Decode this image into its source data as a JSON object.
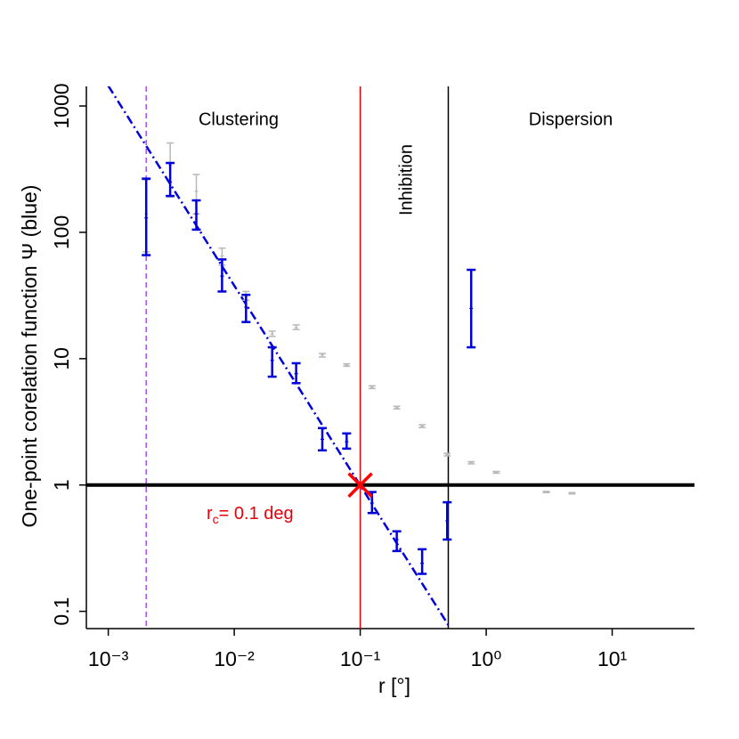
{
  "chart_data": {
    "type": "errorbar",
    "x_label": "r  [°]",
    "y_label": "One-point corelation function  Ψ  (blue)",
    "log_x": true,
    "log_y": true,
    "xlim": [
      0.00067,
      45
    ],
    "ylim": [
      0.073,
      1430
    ],
    "xticks": [
      {
        "value": 0.001,
        "label": "10⁻³"
      },
      {
        "value": 0.01,
        "label": "10⁻²"
      },
      {
        "value": 0.1,
        "label": "10⁻¹"
      },
      {
        "value": 1,
        "label": "10⁰"
      },
      {
        "value": 10,
        "label": "10¹"
      }
    ],
    "yticks": [
      0.1,
      1,
      10,
      100,
      1000
    ],
    "series": [
      {
        "color": "#b8b8b8",
        "x": [
          0.002,
          0.0031,
          0.005,
          0.008,
          0.0124,
          0.02,
          0.031,
          0.05,
          0.078,
          0.124,
          0.195,
          0.31,
          0.49,
          0.76,
          1.2,
          3.0,
          4.8
        ],
        "values": [
          140,
          340,
          211,
          65,
          31.6,
          15.7,
          17.6,
          10.7,
          8.9,
          5.95,
          4.1,
          2.92,
          1.74,
          1.5,
          1.26,
          0.88,
          0.86
        ],
        "lower": [
          70,
          190,
          140,
          55,
          29,
          15,
          17,
          10.3,
          8.7,
          5.8,
          4.0,
          2.85,
          1.7,
          1.47,
          1.24,
          0.87,
          0.85
        ],
        "upper": [
          260,
          510,
          287,
          75,
          34,
          16.5,
          18.5,
          11,
          9.1,
          6.1,
          4.2,
          3.0,
          1.78,
          1.53,
          1.28,
          0.89,
          0.87
        ]
      },
      {
        "color": "#0000dd",
        "x": [
          0.002,
          0.0031,
          0.005,
          0.008,
          0.0124,
          0.02,
          0.031,
          0.05,
          0.078,
          0.124,
          0.195,
          0.31,
          0.49,
          0.76
        ],
        "values": [
          130,
          250,
          140,
          45,
          25.6,
          9.7,
          7.6,
          2.3,
          2.2,
          0.72,
          0.37,
          0.24,
          0.52,
          25
        ],
        "lower": [
          66,
          194,
          105,
          34,
          19.5,
          7.2,
          6.4,
          1.88,
          1.94,
          0.6,
          0.3,
          0.198,
          0.37,
          12.3
        ],
        "upper": [
          266,
          354,
          179,
          61,
          32,
          12.3,
          9.2,
          2.82,
          2.56,
          0.88,
          0.43,
          0.31,
          0.73,
          50.5
        ]
      }
    ],
    "fit": {
      "color": "#0000dd",
      "x": [
        0.001,
        0.5
      ],
      "y": [
        1445,
        0.078
      ]
    },
    "vlines": [
      {
        "x": 0.002,
        "color": "#a64dff",
        "dashed": true
      },
      {
        "x": 0.1,
        "color": "#e8000b",
        "dashed": false
      },
      {
        "x": 0.5,
        "color": "#000000",
        "dashed": false
      }
    ],
    "hline": 1,
    "marker": {
      "x": 0.1,
      "y": 1,
      "color": "#ff0000"
    },
    "annotations": {
      "clustering": "Clustering",
      "inhibition": "Inhibition",
      "dispersion": "Dispersion",
      "rc_label": {
        "base": "r",
        "sub": "c",
        "rest": "= 0.1 deg"
      }
    }
  }
}
